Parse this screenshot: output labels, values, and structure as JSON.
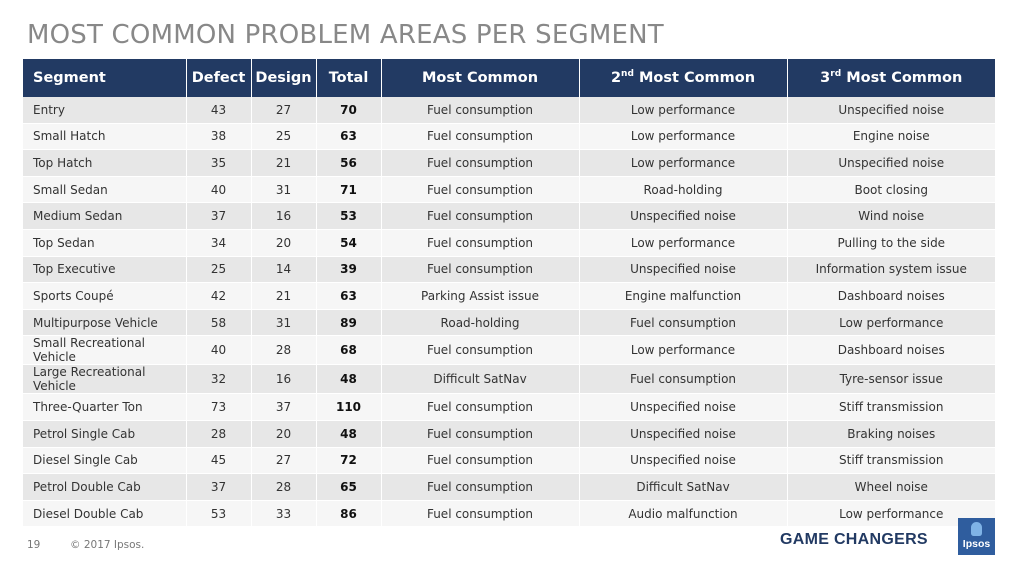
{
  "title": "MOST COMMON PROBLEM AREAS PER SEGMENT",
  "table": {
    "headers": {
      "segment": "Segment",
      "defect": "Defect",
      "design": "Design",
      "total": "Total",
      "most_common": "Most Common",
      "second_num": "2",
      "second_sup": "nd",
      "second_text": " Most Common",
      "third_num": "3",
      "third_sup": "rd",
      "third_text": " Most Common"
    },
    "rows": [
      [
        "Entry",
        "43",
        "27",
        "70",
        "Fuel consumption",
        "Low performance",
        "Unspecified noise"
      ],
      [
        "Small Hatch",
        "38",
        "25",
        "63",
        "Fuel consumption",
        "Low performance",
        "Engine noise"
      ],
      [
        "Top Hatch",
        "35",
        "21",
        "56",
        "Fuel consumption",
        "Low performance",
        "Unspecified noise"
      ],
      [
        "Small Sedan",
        "40",
        "31",
        "71",
        "Fuel consumption",
        "Road-holding",
        "Boot closing"
      ],
      [
        "Medium Sedan",
        "37",
        "16",
        "53",
        "Fuel consumption",
        "Unspecified noise",
        "Wind noise"
      ],
      [
        "Top Sedan",
        "34",
        "20",
        "54",
        "Fuel consumption",
        "Low performance",
        "Pulling to the side"
      ],
      [
        "Top Executive",
        "25",
        "14",
        "39",
        "Fuel consumption",
        "Unspecified noise",
        "Information system issue"
      ],
      [
        "Sports Coupé",
        "42",
        "21",
        "63",
        "Parking Assist issue",
        "Engine malfunction",
        "Dashboard noises"
      ],
      [
        "Multipurpose Vehicle",
        "58",
        "31",
        "89",
        "Road-holding",
        "Fuel consumption",
        "Low performance"
      ],
      [
        "Small Recreational Vehicle",
        "40",
        "28",
        "68",
        "Fuel consumption",
        "Low performance",
        "Dashboard noises"
      ],
      [
        "Large Recreational Vehicle",
        "32",
        "16",
        "48",
        "Difficult SatNav",
        "Fuel consumption",
        "Tyre-sensor issue"
      ],
      [
        "Three-Quarter Ton",
        "73",
        "37",
        "110",
        "Fuel consumption",
        "Unspecified noise",
        "Stiff transmission"
      ],
      [
        "Petrol Single Cab",
        "28",
        "20",
        "48",
        "Fuel consumption",
        "Unspecified noise",
        "Braking noises"
      ],
      [
        "Diesel Single Cab",
        "45",
        "27",
        "72",
        "Fuel consumption",
        "Unspecified noise",
        "Stiff transmission"
      ],
      [
        "Petrol Double Cab",
        "37",
        "28",
        "65",
        "Fuel consumption",
        "Difficult SatNav",
        "Wheel noise"
      ],
      [
        "Diesel Double Cab",
        "53",
        "33",
        "86",
        "Fuel consumption",
        "Audio malfunction",
        "Low performance"
      ]
    ]
  },
  "footer": {
    "page_number": "19",
    "copyright": "© 2017 Ipsos.",
    "tagline": "GAME CHANGERS",
    "logo_text": "Ipsos"
  },
  "colors": {
    "header_bg": "#223a63",
    "title_gray": "#888888",
    "row_odd": "#e7e7e7",
    "row_even": "#f6f6f6",
    "logo_blue": "#2f5d9e"
  }
}
